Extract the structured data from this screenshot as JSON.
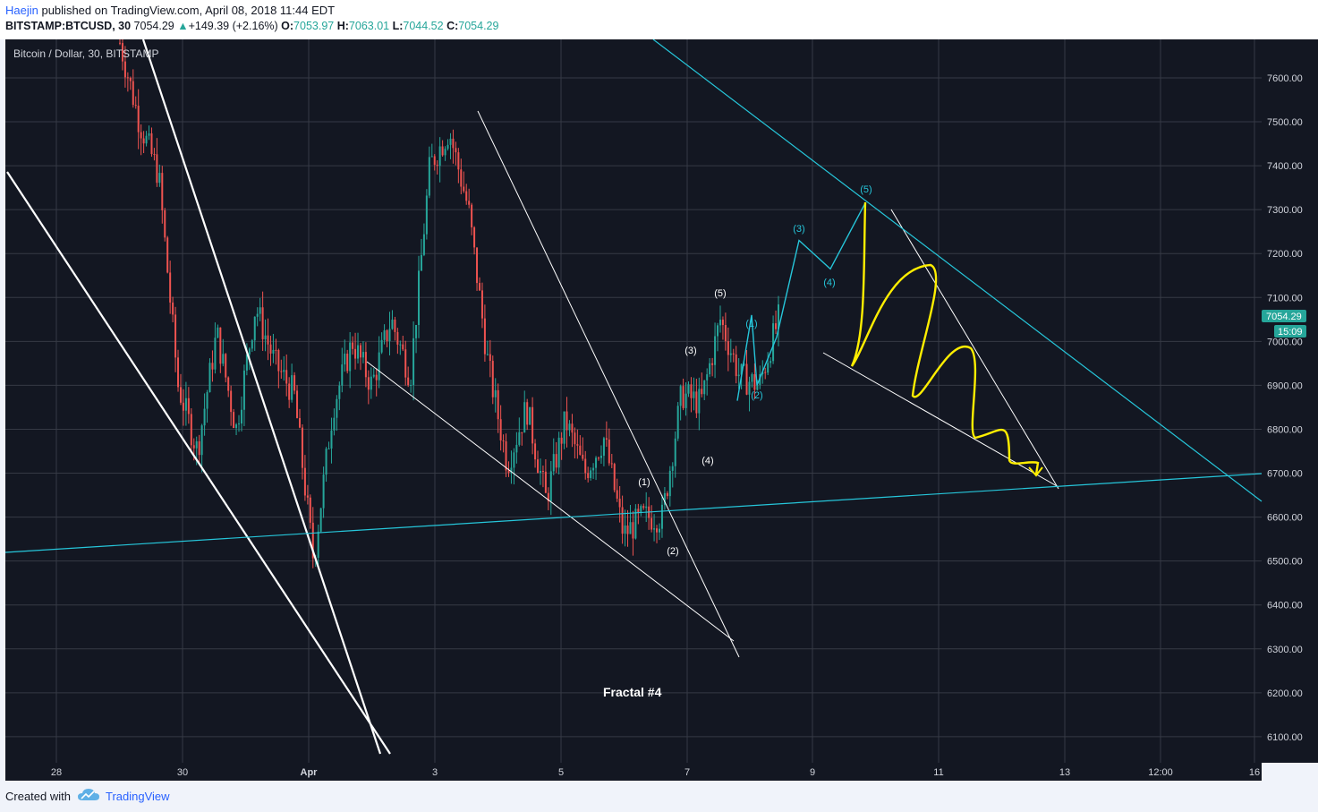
{
  "header": {
    "author": "Haejin",
    "published": " published on TradingView.com, April 08, 2018 11:44 EDT",
    "symbol": "BITSTAMP:BTCUSD, 30",
    "last": "7054.29",
    "change_arrow": "▲",
    "change": "+149.39 (+2.16%)",
    "o_label": "O:",
    "o": "7053.97",
    "h_label": "H:",
    "h": "7063.01",
    "l_label": "L:",
    "l": "7044.52",
    "c_label": "C:",
    "c": "7054.29"
  },
  "footer": {
    "created": "Created with",
    "brand": "TradingView",
    "logo_icon": "tradingview-cloud-icon"
  },
  "colors": {
    "background": "#131722",
    "grid": "#363a45",
    "up": "#26a69a",
    "down": "#ef5350",
    "cyan": "#26c6da",
    "yellow": "#ffee00",
    "white": "#ffffff",
    "price_tag": "#26a69a"
  },
  "chart_data": {
    "type": "candlestick",
    "title": "Bitcoin / Dollar, 30, BITSTAMP",
    "annotation": "Fractal #4",
    "y_ticks": [
      "7600.00",
      "7500.00",
      "7400.00",
      "7300.00",
      "7200.00",
      "7100.00",
      "7000.00",
      "6900.00",
      "6800.00",
      "6700.00",
      "6600.00",
      "6500.00",
      "6400.00",
      "6300.00",
      "6200.00",
      "6100.00"
    ],
    "x_ticks": [
      "28",
      "30",
      "Apr",
      "3",
      "5",
      "7",
      "9",
      "11",
      "13",
      "12:00",
      "16"
    ],
    "ylim": [
      6050,
      7690
    ],
    "current_price": "7054.29",
    "countdown": "15:09",
    "price_path_approx": [
      [
        0.0,
        7680
      ],
      [
        1.0,
        7500
      ],
      [
        2.0,
        7380
      ],
      [
        3.0,
        6900
      ],
      [
        4.0,
        6750
      ],
      [
        5.0,
        7020
      ],
      [
        6.0,
        6800
      ],
      [
        7.0,
        7080
      ],
      [
        8.0,
        6950
      ],
      [
        9.0,
        6880
      ],
      [
        10.0,
        6500
      ],
      [
        11.0,
        6850
      ],
      [
        12.0,
        7000
      ],
      [
        13.0,
        6900
      ],
      [
        14.0,
        7050
      ],
      [
        15.0,
        6920
      ],
      [
        16.0,
        7400
      ],
      [
        17.0,
        7480
      ],
      [
        18.0,
        7300
      ],
      [
        19.0,
        6950
      ],
      [
        20.0,
        6720
      ],
      [
        21.0,
        6850
      ],
      [
        22.0,
        6640
      ],
      [
        23.0,
        6820
      ],
      [
        24.0,
        6700
      ],
      [
        25.0,
        6780
      ],
      [
        26.0,
        6560
      ],
      [
        27.0,
        6600
      ],
      [
        28.0,
        6600
      ],
      [
        29.0,
        6880
      ],
      [
        30.0,
        6860
      ],
      [
        31.0,
        7050
      ],
      [
        32.0,
        6920
      ],
      [
        33.0,
        6900
      ],
      [
        34.0,
        7050
      ]
    ],
    "wave_labels_white": [
      "(1)",
      "(2)",
      "(3)",
      "(4)",
      "(5)"
    ],
    "wave_labels_cyan": [
      "(1)",
      "(2)",
      "(3)",
      "(4)",
      "(5)"
    ],
    "projected_wave": [
      [
        0,
        6900
      ],
      [
        1,
        7060
      ],
      [
        2,
        7230
      ],
      [
        3,
        7165
      ],
      [
        4,
        7315
      ]
    ]
  }
}
